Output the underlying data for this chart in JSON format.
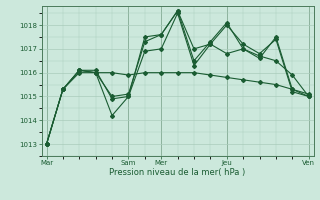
{
  "bg_color": "#cce8dc",
  "grid_color": "#aaccbb",
  "line_color": "#1a5c32",
  "title": "Pression niveau de la mer( hPa )",
  "ylim": [
    1012.5,
    1018.8
  ],
  "yticks": [
    1013,
    1014,
    1015,
    1016,
    1017,
    1018
  ],
  "xtick_labels": [
    "Mar",
    "Sam",
    "Mer",
    "Jeu",
    "Ven"
  ],
  "xtick_positions": [
    0,
    5,
    7,
    11,
    16
  ],
  "vline_positions": [
    0,
    5,
    7,
    11,
    16
  ],
  "series": [
    [
      1013.0,
      1015.3,
      1016.1,
      1016.0,
      1014.2,
      1015.0,
      1017.5,
      1017.6,
      1018.6,
      1017.0,
      1017.2,
      1018.0,
      1017.2,
      1016.8,
      1017.4,
      1015.2,
      1015.0
    ],
    [
      1013.0,
      1015.3,
      1016.1,
      1016.1,
      1014.9,
      1015.0,
      1016.9,
      1017.0,
      1018.5,
      1016.3,
      1017.2,
      1016.8,
      1017.0,
      1016.7,
      1016.5,
      1015.9,
      1015.0
    ],
    [
      1013.0,
      1015.3,
      1016.0,
      1016.0,
      1016.0,
      1015.9,
      1016.0,
      1016.0,
      1016.0,
      1016.0,
      1015.9,
      1015.8,
      1015.7,
      1015.6,
      1015.5,
      1015.3,
      1015.0
    ],
    [
      1013.0,
      1015.3,
      1016.1,
      1016.0,
      1015.0,
      1015.1,
      1017.3,
      1017.6,
      1018.6,
      1016.5,
      1017.3,
      1018.1,
      1017.0,
      1016.6,
      1017.5,
      1015.3,
      1015.1
    ]
  ],
  "x": [
    0,
    1,
    2,
    3,
    4,
    5,
    6,
    7,
    8,
    9,
    10,
    11,
    12,
    13,
    14,
    15,
    16
  ]
}
